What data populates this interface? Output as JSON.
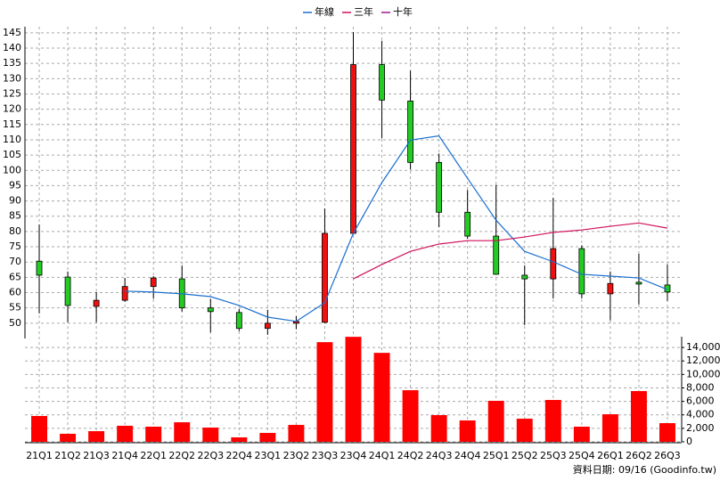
{
  "chart_data": [
    {
      "type": "candlestick",
      "categories": [
        "21Q1",
        "21Q2",
        "21Q3",
        "21Q4",
        "22Q1",
        "22Q2",
        "22Q3",
        "22Q4",
        "23Q1",
        "23Q2",
        "23Q3",
        "23Q4",
        "24Q1",
        "24Q2",
        "24Q3",
        "24Q4",
        "25Q1",
        "25Q2",
        "25Q3",
        "25Q4",
        "26Q1",
        "26Q2",
        "26Q3"
      ],
      "open": [
        70.3,
        65.1,
        55.5,
        57.5,
        62,
        64.5,
        55,
        53.5,
        48.3,
        50,
        50.3,
        79.4,
        134.6,
        122.7,
        102.6,
        86.3,
        78.5,
        65.7,
        64.5,
        74.4,
        59.6,
        63.4,
        62.5
      ],
      "close": [
        65.7,
        55.8,
        57.5,
        62,
        64.8,
        55,
        53.8,
        48.3,
        50,
        50.6,
        79.4,
        134.6,
        123,
        102.6,
        86.3,
        78.5,
        66,
        64.5,
        74.4,
        59.6,
        63,
        62.8,
        60.2
      ],
      "high": [
        82.3,
        66.9,
        60.2,
        64.8,
        65.4,
        68.9,
        58,
        54.7,
        54.4,
        52.3,
        87.5,
        145.3,
        142.4,
        132.6,
        105.5,
        93.6,
        95.3,
        68.9,
        91,
        75.5,
        66.9,
        72.7,
        69.2
      ],
      "low": [
        53.2,
        50.3,
        50.3,
        57,
        58,
        53.8,
        47,
        47.4,
        46.2,
        48,
        50,
        79,
        110.5,
        100.3,
        81.4,
        77.6,
        66,
        49.4,
        58.1,
        58.1,
        50.9,
        56.1,
        57.3
      ],
      "up_color": "#ee1111",
      "down_color": "#22cc22",
      "series": [
        {
          "name": "年線",
          "color": "#1a6fd0",
          "values": [
            null,
            null,
            null,
            60.5,
            60.2,
            59.6,
            58.7,
            55.8,
            52,
            50.6,
            56.7,
            79.4,
            96,
            109.9,
            111.3,
            97.4,
            83.7,
            73.5,
            70.1,
            66,
            65.4,
            64.8,
            61
          ]
        },
        {
          "name": "三年",
          "color": "#d0105a",
          "values": [
            null,
            null,
            null,
            null,
            null,
            null,
            null,
            null,
            null,
            null,
            null,
            64.5,
            69.2,
            73.5,
            75.9,
            77,
            77,
            78.2,
            79.7,
            80.5,
            81.7,
            82.8,
            81.1
          ]
        },
        {
          "name": "十年",
          "color": "#a01890",
          "values": [
            null,
            null,
            null,
            null,
            null,
            null,
            null,
            null,
            null,
            null,
            null,
            null,
            null,
            null,
            null,
            null,
            null,
            null,
            null,
            null,
            null,
            null,
            null
          ]
        }
      ],
      "ylim": [
        45,
        147
      ],
      "yticks": [
        50,
        55,
        60,
        65,
        70,
        75,
        80,
        85,
        90,
        95,
        100,
        105,
        110,
        115,
        120,
        125,
        130,
        135,
        140,
        145
      ],
      "grid": true
    },
    {
      "type": "bar",
      "values": [
        3830,
        1190,
        1580,
        2380,
        2245,
        2900,
        2110,
        660,
        1320,
        2510,
        14790,
        15580,
        13200,
        7660,
        3960,
        3170,
        6080,
        3430,
        6210,
        2245,
        4090,
        7530,
        2770
      ],
      "color": "#ff0000",
      "ylim": [
        0,
        15600
      ],
      "yticks": [
        0,
        {
          "value": 2000,
          "label": "2,000"
        },
        {
          "value": 4000,
          "label": "4,000"
        },
        {
          "value": 6000,
          "label": "6,000"
        },
        {
          "value": 8000,
          "label": "8,000"
        },
        {
          "value": 10000,
          "label": "10,000"
        },
        {
          "value": 12000,
          "label": "12,000"
        },
        {
          "value": 14000,
          "label": "14,000"
        }
      ],
      "grid": true,
      "source": "資料日期: 09/16  (Goodinfo.tw)"
    }
  ]
}
